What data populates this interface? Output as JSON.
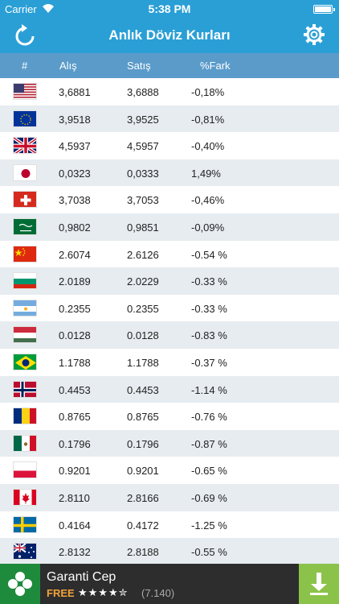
{
  "status_bar": {
    "carrier": "Carrier",
    "time": "5:38 PM"
  },
  "nav": {
    "title": "Anlık Döviz Kurları"
  },
  "header": {
    "index": "#",
    "buy": "Alış",
    "sell": "Satış",
    "diff": "%Fark"
  },
  "rows": [
    {
      "flag": "us-flag-icon",
      "buy": "3,6881",
      "sell": "3,6888",
      "diff": "-0,18%"
    },
    {
      "flag": "eu-flag-icon",
      "buy": "3,9518",
      "sell": "3,9525",
      "diff": "-0,81%"
    },
    {
      "flag": "uk-flag-icon",
      "buy": "4,5937",
      "sell": "4,5957",
      "diff": "-0,40%"
    },
    {
      "flag": "japan-flag-icon",
      "buy": "0,0323",
      "sell": "0,0333",
      "diff": "1,49%"
    },
    {
      "flag": "switzerland-flag-icon",
      "buy": "3,7038",
      "sell": "3,7053",
      "diff": "-0,46%"
    },
    {
      "flag": "saudi-arabia-flag-icon",
      "buy": "0,9802",
      "sell": "0,9851",
      "diff": "-0,09%"
    },
    {
      "flag": "china-flag-icon",
      "buy": "2.6074",
      "sell": "2.6126",
      "diff": "-0.54 %"
    },
    {
      "flag": "bulgaria-flag-icon",
      "buy": "2.0189",
      "sell": "2.0229",
      "diff": "-0.33 %"
    },
    {
      "flag": "argentina-flag-icon",
      "buy": "0.2355",
      "sell": "0.2355",
      "diff": "-0.33 %"
    },
    {
      "flag": "hungary-flag-icon",
      "buy": "0.0128",
      "sell": "0.0128",
      "diff": "-0.83 %"
    },
    {
      "flag": "brazil-flag-icon",
      "buy": "1.1788",
      "sell": "1.1788",
      "diff": "-0.37 %"
    },
    {
      "flag": "norway-flag-icon",
      "buy": "0.4453",
      "sell": "0.4453",
      "diff": "-1.14 %"
    },
    {
      "flag": "romania-flag-icon",
      "buy": "0.8765",
      "sell": "0.8765",
      "diff": "-0.76 %"
    },
    {
      "flag": "mexico-flag-icon",
      "buy": "0.1796",
      "sell": "0.1796",
      "diff": "-0.87 %"
    },
    {
      "flag": "poland-flag-icon",
      "buy": "0.9201",
      "sell": "0.9201",
      "diff": "-0.65 %"
    },
    {
      "flag": "canada-flag-icon",
      "buy": "2.8110",
      "sell": "2.8166",
      "diff": "-0.69 %"
    },
    {
      "flag": "sweden-flag-icon",
      "buy": "0.4164",
      "sell": "0.4172",
      "diff": "-1.25 %"
    },
    {
      "flag": "australia-flag-icon",
      "buy": "2.8132",
      "sell": "2.8188",
      "diff": "-0.55 %"
    }
  ],
  "ad": {
    "name": "Garanti Cep",
    "price": "FREE",
    "rating": "★★★★✮",
    "reviews": "(7.140)"
  },
  "colors": {
    "accent": "#2a9fd6",
    "header": "#5a9bc9",
    "alt_row": "#e6ecf0",
    "download": "#8bc34a"
  }
}
